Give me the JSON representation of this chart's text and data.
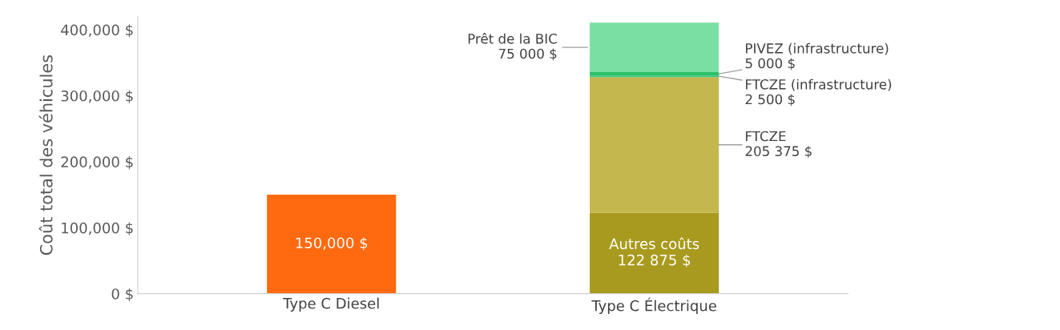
{
  "chart_data": {
    "type": "bar",
    "stacked": true,
    "ylabel": "Coût total des véhicules",
    "categories": [
      "Type C Diesel",
      "Type C Électrique"
    ],
    "series": [
      {
        "color": "#ff6a10",
        "values": [
          150000,
          null
        ],
        "value_labels": [
          "150,000 $",
          null
        ]
      },
      {
        "name": "Autres coûts",
        "color": "#a89a1e",
        "values": [
          null,
          122875
        ],
        "value_labels": [
          null,
          "122 875 $"
        ]
      },
      {
        "name": "FTCZE",
        "color": "#c4b74e",
        "values": [
          null,
          205375
        ],
        "value_labels": [
          null,
          "205 375 $"
        ]
      },
      {
        "name": "FTCZE (infrastructure)",
        "color": "#3cc47a",
        "values": [
          null,
          2500
        ],
        "value_labels": [
          null,
          "2 500 $"
        ]
      },
      {
        "name": "PIVEZ (infrastructure)",
        "color": "#2fbf6a",
        "values": [
          null,
          5000
        ],
        "value_labels": [
          null,
          "5 000 $"
        ]
      },
      {
        "name": "Prêt de la BIC",
        "color": "#7adfa3",
        "values": [
          null,
          75000
        ],
        "value_labels": [
          null,
          "75 000 $"
        ]
      }
    ],
    "ylim": [
      0,
      420000
    ],
    "yticks": [
      {
        "value": 0,
        "label": "0 $"
      },
      {
        "value": 100000,
        "label": "100,000 $"
      },
      {
        "value": 200000,
        "label": "200,000 $"
      },
      {
        "value": 300000,
        "label": "300,000 $"
      },
      {
        "value": 400000,
        "label": "400,000 $"
      }
    ],
    "grid": false,
    "legend": false
  }
}
